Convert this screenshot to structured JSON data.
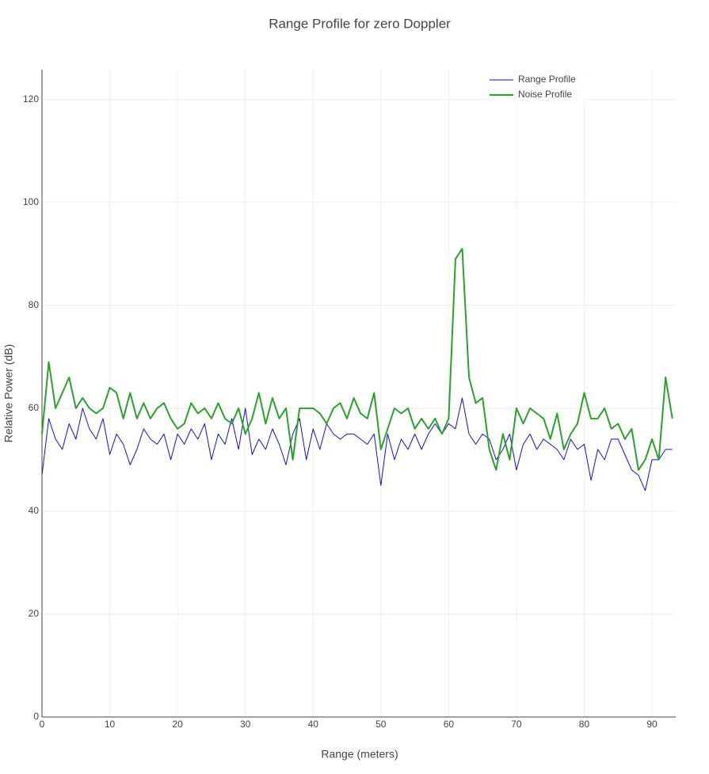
{
  "chart_data": {
    "type": "line",
    "title": "Range Profile for zero Doppler",
    "x_label": "Range (meters)",
    "y_label": "Relative Power (dB)",
    "x": [
      0,
      1,
      2,
      3,
      4,
      5,
      6,
      7,
      8,
      9,
      10,
      11,
      12,
      13,
      14,
      15,
      16,
      17,
      18,
      19,
      20,
      21,
      22,
      23,
      24,
      25,
      26,
      27,
      28,
      29,
      30,
      31,
      32,
      33,
      34,
      35,
      36,
      37,
      38,
      39,
      40,
      41,
      42,
      43,
      44,
      45,
      46,
      47,
      48,
      49,
      50,
      51,
      52,
      53,
      54,
      55,
      56,
      57,
      58,
      59,
      60,
      61,
      62,
      63,
      64,
      65,
      66,
      67,
      68,
      69,
      70,
      71,
      72,
      73,
      74,
      75,
      76,
      77,
      78,
      79,
      80,
      81,
      82,
      83,
      84,
      85,
      86,
      87,
      88,
      89,
      90,
      91,
      92,
      93
    ],
    "series": [
      {
        "name": "Range Profile",
        "color": "#1010d8",
        "width": 1,
        "values": [
          47,
          58,
          54,
          52,
          57,
          54,
          60,
          56,
          54,
          58,
          51,
          55,
          53,
          49,
          52,
          56,
          54,
          53,
          55,
          50,
          55,
          53,
          56,
          54,
          57,
          50,
          55,
          53,
          58,
          52,
          60,
          51,
          54,
          52,
          56,
          53,
          49,
          55,
          58,
          50,
          56,
          52,
          57,
          55,
          54,
          55,
          55,
          54,
          53,
          55,
          45,
          55,
          50,
          54,
          52,
          55,
          52,
          55,
          57,
          55,
          57,
          56,
          62,
          55,
          53,
          55,
          54,
          50,
          52,
          55,
          48,
          53,
          55,
          52,
          54,
          53,
          52,
          50,
          54,
          52,
          53,
          46,
          52,
          50,
          54,
          54,
          51,
          48,
          47,
          44,
          50,
          50,
          52,
          52
        ]
      },
      {
        "name": "Noise Profile",
        "color": "#2ca02c",
        "width": 2,
        "values": [
          55,
          69,
          60,
          63,
          66,
          60,
          62,
          60,
          59,
          60,
          64,
          63,
          58,
          63,
          58,
          61,
          58,
          60,
          61,
          58,
          56,
          57,
          61,
          59,
          60,
          58,
          61,
          58,
          57,
          60,
          55,
          58,
          63,
          57,
          62,
          58,
          60,
          50,
          60,
          60,
          60,
          59,
          57,
          60,
          61,
          58,
          62,
          59,
          58,
          63,
          52,
          56,
          60,
          59,
          60,
          56,
          58,
          56,
          58,
          55,
          58,
          89,
          91,
          66,
          61,
          62,
          52,
          48,
          55,
          50,
          60,
          57,
          60,
          59,
          58,
          54,
          59,
          52,
          55,
          57,
          63,
          58,
          58,
          60,
          56,
          57,
          54,
          56,
          48,
          50,
          54,
          50,
          66,
          58
        ]
      }
    ],
    "xlim": [
      0,
      93.5
    ],
    "xticks": [
      0,
      10,
      20,
      30,
      40,
      50,
      60,
      70,
      80,
      90
    ],
    "ylim": [
      0,
      125.8
    ],
    "yticks": [
      0,
      20,
      40,
      60,
      80,
      100,
      120
    ],
    "grid": true,
    "legend": "top-right"
  }
}
